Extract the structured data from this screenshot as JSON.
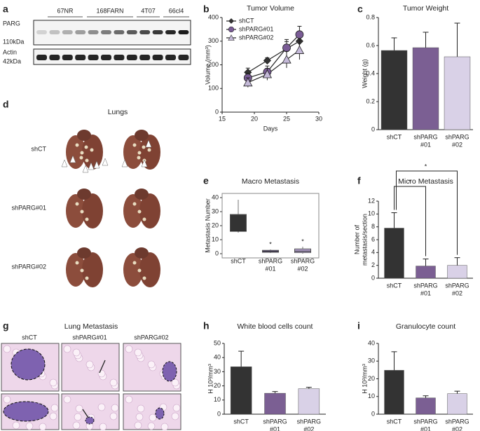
{
  "panel_letters": [
    "a",
    "b",
    "c",
    "d",
    "e",
    "f",
    "g",
    "h",
    "i"
  ],
  "blot": {
    "lanes": [
      "67NR",
      "168FARN",
      "4T07",
      "66cl4"
    ],
    "markers": [
      {
        "protein": "PARG",
        "size": "110kDa"
      },
      {
        "protein": "Actin",
        "size": "42kDa"
      }
    ]
  },
  "lungs": {
    "title": "Lungs",
    "groups": [
      "shCT",
      "shPARG#01",
      "shPARG#02"
    ]
  },
  "histology": {
    "title": "Lung Metastasis",
    "groups": [
      "shCT",
      "shPARG#01",
      "shPARG#02"
    ]
  },
  "chart_data": [
    {
      "type": "line",
      "title": "Tumor Volume",
      "xlabel": "Days",
      "ylabel": "Volume (mm³)",
      "x": [
        19,
        22,
        25,
        27
      ],
      "xlim": [
        15,
        30
      ],
      "xticks": [
        15,
        20,
        25,
        30
      ],
      "ylim": [
        0,
        400
      ],
      "yticks": [
        0,
        100,
        200,
        300,
        400
      ],
      "legend": "upper left",
      "series": [
        {
          "name": "shCT",
          "color": "#333333",
          "marker": "diamond",
          "values": [
            168,
            218,
            268,
            300
          ],
          "errors": [
            18,
            12,
            30,
            30
          ]
        },
        {
          "name": "shPARG#01",
          "color": "#7a5c96",
          "marker": "circle",
          "values": [
            145,
            170,
            272,
            328
          ],
          "errors": [
            20,
            25,
            35,
            35
          ]
        },
        {
          "name": "shPARG#02",
          "color": "#c4b9d8",
          "marker": "triangle",
          "values": [
            125,
            160,
            222,
            262
          ],
          "errors": [
            20,
            25,
            35,
            40
          ]
        }
      ]
    },
    {
      "type": "bar",
      "title": "Tumor Weight",
      "ylabel": "Weight (g)",
      "categories": [
        [
          "shCT"
        ],
        [
          "shPARG",
          "#01"
        ],
        [
          "shPARG",
          "#02"
        ]
      ],
      "values": [
        0.565,
        0.585,
        0.52
      ],
      "errors": [
        0.09,
        0.11,
        0.24
      ],
      "colors": [
        "#333333",
        "#7b5f93",
        "#d9d1e7"
      ],
      "ylim": [
        0,
        0.8
      ],
      "yticks": [
        0,
        0.2,
        0.4,
        0.6,
        0.8
      ]
    },
    {
      "type": "box",
      "title": "Macro Metastasis",
      "ylabel": "Metastasis Number",
      "categories": [
        [
          "shCT"
        ],
        [
          "shPARG",
          "#01"
        ],
        [
          "shPARG",
          "#02"
        ]
      ],
      "min": [
        15,
        0.5,
        0
      ],
      "q1": [
        16,
        1,
        0.8
      ],
      "median": [
        16,
        1.6,
        1.8
      ],
      "q3": [
        28,
        2.4,
        3.4
      ],
      "max": [
        38.5,
        3,
        5
      ],
      "value_annotations": [
        null,
        "*",
        "*"
      ],
      "colors": [
        "#333333",
        "#6e5a9a",
        "#b7a5d3"
      ],
      "ylim": [
        0,
        40
      ],
      "yticks": [
        0,
        10,
        20,
        30,
        40
      ]
    },
    {
      "type": "bar",
      "title": "Micro Metastasis",
      "ylabel": [
        "Number of",
        "metastasis/section"
      ],
      "categories": [
        [
          "shCT"
        ],
        [
          "shPARG",
          "#01"
        ],
        [
          "shPARG",
          "#02"
        ]
      ],
      "values": [
        7.8,
        1.9,
        2.0
      ],
      "errors": [
        2.4,
        1.1,
        1.2
      ],
      "significance_brackets": [
        "*",
        "*"
      ],
      "colors": [
        "#333333",
        "#7b5f93",
        "#d9d1e7"
      ],
      "ylim": [
        0,
        12
      ],
      "yticks": [
        0,
        2,
        4,
        6,
        8,
        10,
        12
      ]
    },
    {
      "type": "bar",
      "title": "White blood cells count",
      "ylabel": "H 10³/mm³",
      "categories": [
        [
          "shCT"
        ],
        [
          "shPARG",
          "#01"
        ],
        [
          "shPARG",
          "#02"
        ]
      ],
      "values": [
        33.5,
        14.8,
        18
      ],
      "errors": [
        11,
        1.2,
        1
      ],
      "colors": [
        "#333333",
        "#7b5f93",
        "#d9d1e7"
      ],
      "ylim": [
        0,
        50
      ],
      "yticks": [
        0,
        10,
        20,
        30,
        40,
        50
      ]
    },
    {
      "type": "bar",
      "title": "Granulocyte count",
      "ylabel": "H 10³/mm³",
      "categories": [
        [
          "shCT"
        ],
        [
          "shPARG",
          "#01"
        ],
        [
          "shPARG",
          "#02"
        ]
      ],
      "values": [
        24.8,
        9.2,
        11.6
      ],
      "errors": [
        10.5,
        1.2,
        1.4
      ],
      "colors": [
        "#333333",
        "#7b5f93",
        "#d9d1e7"
      ],
      "ylim": [
        0,
        40
      ],
      "yticks": [
        0,
        10,
        20,
        30,
        40
      ]
    }
  ]
}
